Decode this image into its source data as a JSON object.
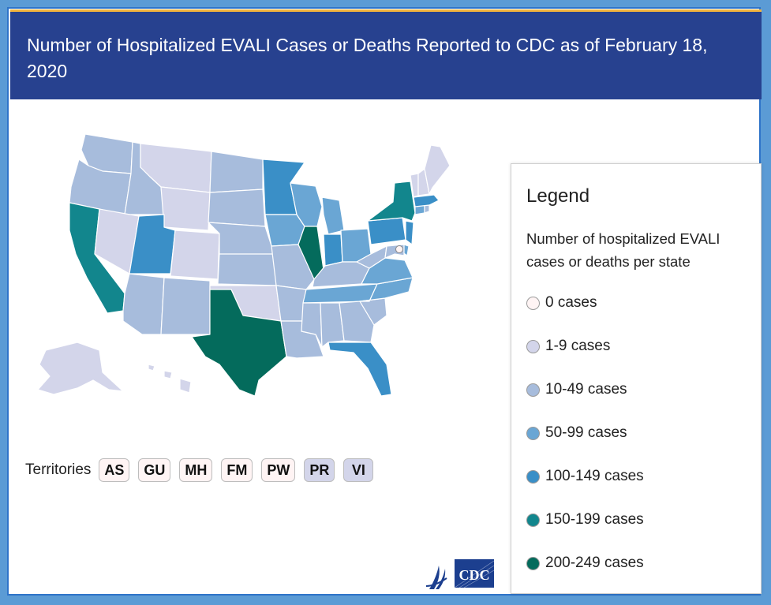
{
  "header": {
    "title": "Number of Hospitalized EVALI Cases or Deaths Reported to CDC as of February 18, 2020"
  },
  "colors": {
    "c0": "#fff4f4",
    "c1": "#d3d5ea",
    "c2": "#a7bcdc",
    "c3": "#6aa6d4",
    "c4": "#3a8fc7",
    "c5": "#12868d",
    "c6": "#046b5c",
    "header_bg": "#27418f",
    "accent": "#f2b33d"
  },
  "map": {
    "states": [
      {
        "code": "WA",
        "bin": "c2"
      },
      {
        "code": "OR",
        "bin": "c2"
      },
      {
        "code": "CA",
        "bin": "c5"
      },
      {
        "code": "ID",
        "bin": "c2"
      },
      {
        "code": "NV",
        "bin": "c1"
      },
      {
        "code": "MT",
        "bin": "c1"
      },
      {
        "code": "WY",
        "bin": "c1"
      },
      {
        "code": "UT",
        "bin": "c4"
      },
      {
        "code": "AZ",
        "bin": "c2"
      },
      {
        "code": "CO",
        "bin": "c1"
      },
      {
        "code": "NM",
        "bin": "c2"
      },
      {
        "code": "ND",
        "bin": "c2"
      },
      {
        "code": "SD",
        "bin": "c2"
      },
      {
        "code": "NE",
        "bin": "c2"
      },
      {
        "code": "KS",
        "bin": "c2"
      },
      {
        "code": "OK",
        "bin": "c1"
      },
      {
        "code": "TX",
        "bin": "c6"
      },
      {
        "code": "MN",
        "bin": "c4"
      },
      {
        "code": "IA",
        "bin": "c3"
      },
      {
        "code": "MO",
        "bin": "c2"
      },
      {
        "code": "AR",
        "bin": "c2"
      },
      {
        "code": "LA",
        "bin": "c2"
      },
      {
        "code": "WI",
        "bin": "c3"
      },
      {
        "code": "IL",
        "bin": "c6"
      },
      {
        "code": "MI",
        "bin": "c3"
      },
      {
        "code": "IN",
        "bin": "c4"
      },
      {
        "code": "OH",
        "bin": "c3"
      },
      {
        "code": "KY",
        "bin": "c2"
      },
      {
        "code": "TN",
        "bin": "c3"
      },
      {
        "code": "MS",
        "bin": "c2"
      },
      {
        "code": "AL",
        "bin": "c2"
      },
      {
        "code": "GA",
        "bin": "c2"
      },
      {
        "code": "FL",
        "bin": "c4"
      },
      {
        "code": "SC",
        "bin": "c2"
      },
      {
        "code": "NC",
        "bin": "c3"
      },
      {
        "code": "VA",
        "bin": "c3"
      },
      {
        "code": "WV",
        "bin": "c2"
      },
      {
        "code": "PA",
        "bin": "c4"
      },
      {
        "code": "NY",
        "bin": "c5"
      },
      {
        "code": "NJ",
        "bin": "c4"
      },
      {
        "code": "DE",
        "bin": "c3"
      },
      {
        "code": "MD",
        "bin": "c2"
      },
      {
        "code": "CT",
        "bin": "c3"
      },
      {
        "code": "RI",
        "bin": "c2"
      },
      {
        "code": "MA",
        "bin": "c4"
      },
      {
        "code": "VT",
        "bin": "c1"
      },
      {
        "code": "NH",
        "bin": "c1"
      },
      {
        "code": "ME",
        "bin": "c1"
      },
      {
        "code": "AK",
        "bin": "c1"
      },
      {
        "code": "HI",
        "bin": "c1"
      },
      {
        "code": "DC",
        "bin": "c0"
      }
    ]
  },
  "territories": {
    "label": "Territories",
    "items": [
      {
        "code": "AS",
        "bin": "c0"
      },
      {
        "code": "GU",
        "bin": "c0"
      },
      {
        "code": "MH",
        "bin": "c0"
      },
      {
        "code": "FM",
        "bin": "c0"
      },
      {
        "code": "PW",
        "bin": "c0"
      },
      {
        "code": "PR",
        "bin": "c1"
      },
      {
        "code": "VI",
        "bin": "c1"
      }
    ]
  },
  "legend": {
    "title": "Legend",
    "subtitle": "Number of hospitalized EVALI cases or deaths per state",
    "items": [
      {
        "label": "0 cases",
        "bin": "c0"
      },
      {
        "label": "1-9 cases",
        "bin": "c1"
      },
      {
        "label": "10-49 cases",
        "bin": "c2"
      },
      {
        "label": "50-99 cases",
        "bin": "c3"
      },
      {
        "label": "100-149 cases",
        "bin": "c4"
      },
      {
        "label": "150-199 cases",
        "bin": "c5"
      },
      {
        "label": "200-249 cases",
        "bin": "c6"
      }
    ]
  },
  "logo": {
    "text": "CDC"
  }
}
